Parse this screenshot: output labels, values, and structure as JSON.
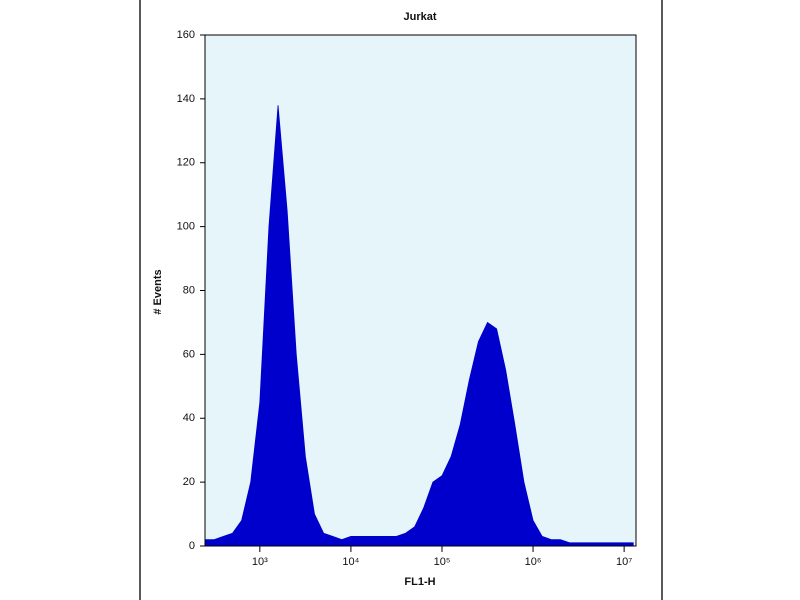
{
  "chart_data": {
    "type": "area",
    "title": "Jurkat",
    "x_label": "FL1-H",
    "y_label": "# Events",
    "x_scale": "log",
    "color": "#0000cc",
    "background": "#e6f5fa",
    "x": [
      251,
      316,
      398,
      501,
      631,
      794,
      1000,
      1259,
      1585,
      1995,
      2512,
      3162,
      3981,
      5012,
      6310,
      7943,
      10000,
      12589,
      15849,
      19953,
      25119,
      31623,
      39811,
      50119,
      63096,
      79433,
      100000,
      125893,
      158489,
      199526,
      251189,
      316228,
      398107,
      501187,
      630957,
      794328,
      1000000,
      1258925,
      1584893,
      1995262,
      2511886,
      3162278,
      3981072,
      5011872,
      6309573,
      7943282,
      10000000,
      12589254
    ],
    "values": [
      2,
      2,
      3,
      4,
      8,
      20,
      45,
      100,
      138,
      105,
      60,
      28,
      10,
      4,
      3,
      2,
      3,
      3,
      3,
      3,
      3,
      3,
      4,
      6,
      12,
      20,
      22,
      28,
      38,
      52,
      64,
      70,
      68,
      55,
      38,
      20,
      8,
      3,
      2,
      2,
      1,
      1,
      1,
      1,
      1,
      1,
      1,
      1
    ],
    "xlim": [
      250,
      13500000
    ],
    "ylim": [
      0,
      160
    ],
    "xticks": [
      {
        "value": 1000,
        "label": "10³"
      },
      {
        "value": 10000,
        "label": "10⁴"
      },
      {
        "value": 100000,
        "label": "10⁵"
      },
      {
        "value": 1000000,
        "label": "10⁶"
      },
      {
        "value": 10000000,
        "label": "10⁷"
      }
    ],
    "yticks": [
      0,
      20,
      40,
      60,
      80,
      100,
      120,
      140,
      160
    ]
  }
}
